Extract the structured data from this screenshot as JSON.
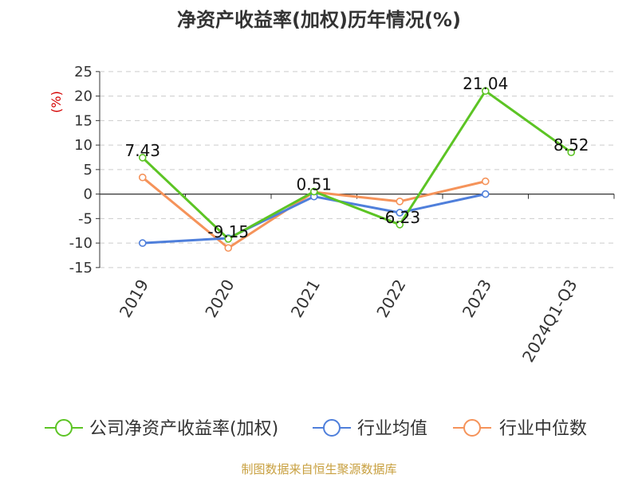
{
  "chart_data": {
    "type": "line",
    "title": "净资产收益率(加权)历年情况(%)",
    "ylabel": "(%)",
    "categories": [
      "2019",
      "2020",
      "2021",
      "2022",
      "2023",
      "2024Q1-Q3"
    ],
    "y_ticks": [
      25,
      20,
      15,
      10,
      5,
      0,
      -5,
      -10,
      -15
    ],
    "ylim": [
      -15,
      25
    ],
    "grid": true,
    "legend_position": "bottom",
    "series": [
      {
        "name": "公司净资产收益率(加权)",
        "color": "#5cc424",
        "values": [
          7.43,
          -9.15,
          0.51,
          -6.23,
          21.04,
          8.52
        ],
        "labels": [
          "7.43",
          "-9.15",
          "0.51",
          "-6.23",
          "21.04",
          "8.52"
        ]
      },
      {
        "name": "行业均值",
        "color": "#4f7fdb",
        "values": [
          -10.0,
          -9.0,
          -0.5,
          -3.8,
          0.0,
          null
        ],
        "labels": []
      },
      {
        "name": "行业中位数",
        "color": "#f5935a",
        "values": [
          3.4,
          -11.0,
          0.4,
          -1.5,
          2.6,
          null
        ],
        "labels": []
      }
    ]
  },
  "source_note": "制图数据来自恒生聚源数据库"
}
